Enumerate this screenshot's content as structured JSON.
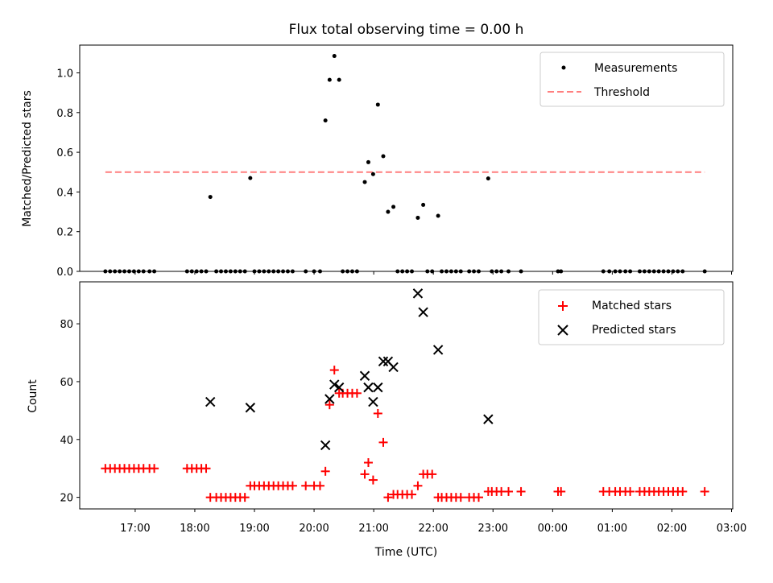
{
  "chart_data": [
    {
      "type": "scatter",
      "title": "Flux total observing time = 0.00 h",
      "xlabel": "",
      "ylabel": "Matched/Predicted stars",
      "xlim": [
        16.07,
        27.02
      ],
      "ylim": [
        0,
        1.14
      ],
      "x_tick_labels": [
        "17:00",
        "18:00",
        "19:00",
        "20:00",
        "21:00",
        "22:00",
        "23:00",
        "00:00",
        "01:00",
        "02:00",
        "03:00"
      ],
      "y_ticks": [
        0.0,
        0.2,
        0.4,
        0.6,
        0.8,
        1.0
      ],
      "y_tick_labels": [
        "0.0",
        "0.2",
        "0.4",
        "0.6",
        "0.8",
        "1.0"
      ],
      "legend": {
        "position": "upper right",
        "entries": [
          "Measurements",
          "Threshold"
        ]
      },
      "colors": {
        "measurements": "#000000",
        "threshold": "#ff7f7f"
      },
      "series": [
        {
          "name": "Measurements",
          "marker": "dot",
          "points": [
            [
              16.5,
              0
            ],
            [
              16.58,
              0
            ],
            [
              16.66,
              0
            ],
            [
              16.74,
              0
            ],
            [
              16.82,
              0
            ],
            [
              16.9,
              0
            ],
            [
              16.98,
              0
            ],
            [
              17.06,
              0
            ],
            [
              17.14,
              0
            ],
            [
              17.24,
              0
            ],
            [
              17.32,
              0
            ],
            [
              17.87,
              0
            ],
            [
              17.95,
              0
            ],
            [
              18.03,
              0
            ],
            [
              18.11,
              0
            ],
            [
              18.19,
              0
            ],
            [
              18.26,
              0.375
            ],
            [
              18.36,
              0
            ],
            [
              18.44,
              0
            ],
            [
              18.52,
              0
            ],
            [
              18.6,
              0
            ],
            [
              18.68,
              0
            ],
            [
              18.76,
              0
            ],
            [
              18.84,
              0
            ],
            [
              18.93,
              0.47
            ],
            [
              19.0,
              0
            ],
            [
              19.08,
              0
            ],
            [
              19.16,
              0
            ],
            [
              19.24,
              0
            ],
            [
              19.32,
              0
            ],
            [
              19.4,
              0
            ],
            [
              19.48,
              0
            ],
            [
              19.56,
              0
            ],
            [
              19.64,
              0
            ],
            [
              19.86,
              0
            ],
            [
              20.0,
              0
            ],
            [
              20.1,
              0
            ],
            [
              20.19,
              0.76
            ],
            [
              20.26,
              0.965
            ],
            [
              20.34,
              1.085
            ],
            [
              20.42,
              0.965
            ],
            [
              20.48,
              0
            ],
            [
              20.56,
              0
            ],
            [
              20.64,
              0
            ],
            [
              20.72,
              0
            ],
            [
              20.85,
              0.45
            ],
            [
              20.91,
              0.55
            ],
            [
              20.99,
              0.49
            ],
            [
              21.07,
              0.84
            ],
            [
              21.16,
              0.58
            ],
            [
              21.24,
              0.3
            ],
            [
              21.33,
              0.325
            ],
            [
              21.4,
              0
            ],
            [
              21.48,
              0
            ],
            [
              21.56,
              0
            ],
            [
              21.64,
              0
            ],
            [
              21.74,
              0.27
            ],
            [
              21.83,
              0.335
            ],
            [
              21.9,
              0
            ],
            [
              21.98,
              0
            ],
            [
              22.08,
              0.28
            ],
            [
              22.14,
              0
            ],
            [
              22.22,
              0
            ],
            [
              22.3,
              0
            ],
            [
              22.38,
              0
            ],
            [
              22.46,
              0
            ],
            [
              22.6,
              0
            ],
            [
              22.68,
              0
            ],
            [
              22.76,
              0
            ],
            [
              22.92,
              0.468
            ],
            [
              22.98,
              0
            ],
            [
              23.06,
              0
            ],
            [
              23.14,
              0
            ],
            [
              23.26,
              0
            ],
            [
              23.47,
              0
            ],
            [
              24.09,
              0
            ],
            [
              24.14,
              0
            ],
            [
              24.85,
              0
            ],
            [
              24.95,
              0
            ],
            [
              25.05,
              0
            ],
            [
              25.13,
              0
            ],
            [
              25.22,
              0
            ],
            [
              25.3,
              0
            ],
            [
              25.46,
              0
            ],
            [
              25.54,
              0
            ],
            [
              25.62,
              0
            ],
            [
              25.7,
              0
            ],
            [
              25.78,
              0
            ],
            [
              25.86,
              0
            ],
            [
              25.94,
              0
            ],
            [
              26.02,
              0
            ],
            [
              26.1,
              0
            ],
            [
              26.18,
              0
            ],
            [
              26.55,
              0
            ]
          ]
        },
        {
          "name": "Threshold",
          "style": "dashed",
          "points": [
            [
              16.5,
              0.5
            ],
            [
              26.55,
              0.5
            ]
          ]
        }
      ]
    },
    {
      "type": "scatter",
      "title": "",
      "xlabel": "Time (UTC)",
      "ylabel": "Count",
      "xlim": [
        16.07,
        27.02
      ],
      "ylim": [
        16,
        94.5
      ],
      "x_ticks": [
        17,
        18,
        19,
        20,
        21,
        22,
        23,
        24,
        25,
        26,
        27
      ],
      "x_tick_labels": [
        "17:00",
        "18:00",
        "19:00",
        "20:00",
        "21:00",
        "22:00",
        "23:00",
        "00:00",
        "01:00",
        "02:00",
        "03:00"
      ],
      "y_ticks": [
        20,
        40,
        60,
        80
      ],
      "y_tick_labels": [
        "20",
        "40",
        "60",
        "80"
      ],
      "legend": {
        "position": "upper right",
        "entries": [
          "Matched stars",
          "Predicted stars"
        ]
      },
      "colors": {
        "matched": "#ff0000",
        "predicted": "#000000"
      },
      "series": [
        {
          "name": "Matched stars",
          "marker": "plus",
          "points": [
            [
              16.5,
              30
            ],
            [
              16.58,
              30
            ],
            [
              16.66,
              30
            ],
            [
              16.74,
              30
            ],
            [
              16.82,
              30
            ],
            [
              16.9,
              30
            ],
            [
              16.98,
              30
            ],
            [
              17.06,
              30
            ],
            [
              17.14,
              30
            ],
            [
              17.24,
              30
            ],
            [
              17.32,
              30
            ],
            [
              17.87,
              30
            ],
            [
              17.95,
              30
            ],
            [
              18.03,
              30
            ],
            [
              18.11,
              30
            ],
            [
              18.19,
              30
            ],
            [
              18.26,
              20
            ],
            [
              18.36,
              20
            ],
            [
              18.44,
              20
            ],
            [
              18.52,
              20
            ],
            [
              18.6,
              20
            ],
            [
              18.68,
              20
            ],
            [
              18.76,
              20
            ],
            [
              18.84,
              20
            ],
            [
              18.93,
              24
            ],
            [
              19.0,
              24
            ],
            [
              19.08,
              24
            ],
            [
              19.16,
              24
            ],
            [
              19.24,
              24
            ],
            [
              19.32,
              24
            ],
            [
              19.4,
              24
            ],
            [
              19.48,
              24
            ],
            [
              19.56,
              24
            ],
            [
              19.64,
              24
            ],
            [
              19.86,
              24
            ],
            [
              20.0,
              24
            ],
            [
              20.1,
              24
            ],
            [
              20.19,
              29
            ],
            [
              20.26,
              52
            ],
            [
              20.34,
              64
            ],
            [
              20.42,
              56
            ],
            [
              20.48,
              56
            ],
            [
              20.56,
              56
            ],
            [
              20.64,
              56
            ],
            [
              20.72,
              56
            ],
            [
              20.85,
              28
            ],
            [
              20.91,
              32
            ],
            [
              20.99,
              26
            ],
            [
              21.07,
              49
            ],
            [
              21.16,
              39
            ],
            [
              21.24,
              20
            ],
            [
              21.33,
              21
            ],
            [
              21.4,
              21
            ],
            [
              21.48,
              21
            ],
            [
              21.56,
              21
            ],
            [
              21.64,
              21
            ],
            [
              21.74,
              24
            ],
            [
              21.83,
              28
            ],
            [
              21.9,
              28
            ],
            [
              21.98,
              28
            ],
            [
              22.08,
              20
            ],
            [
              22.14,
              20
            ],
            [
              22.22,
              20
            ],
            [
              22.3,
              20
            ],
            [
              22.38,
              20
            ],
            [
              22.46,
              20
            ],
            [
              22.6,
              20
            ],
            [
              22.68,
              20
            ],
            [
              22.76,
              20
            ],
            [
              22.92,
              22
            ],
            [
              22.98,
              22
            ],
            [
              23.06,
              22
            ],
            [
              23.14,
              22
            ],
            [
              23.26,
              22
            ],
            [
              23.47,
              22
            ],
            [
              24.09,
              22
            ],
            [
              24.14,
              22
            ],
            [
              24.85,
              22
            ],
            [
              24.95,
              22
            ],
            [
              25.05,
              22
            ],
            [
              25.13,
              22
            ],
            [
              25.22,
              22
            ],
            [
              25.3,
              22
            ],
            [
              25.46,
              22
            ],
            [
              25.54,
              22
            ],
            [
              25.62,
              22
            ],
            [
              25.7,
              22
            ],
            [
              25.78,
              22
            ],
            [
              25.86,
              22
            ],
            [
              25.94,
              22
            ],
            [
              26.02,
              22
            ],
            [
              26.1,
              22
            ],
            [
              26.18,
              22
            ],
            [
              26.55,
              22
            ]
          ]
        },
        {
          "name": "Predicted stars",
          "marker": "x",
          "points": [
            [
              18.26,
              53
            ],
            [
              18.93,
              51
            ],
            [
              20.19,
              38
            ],
            [
              20.26,
              54
            ],
            [
              20.34,
              59
            ],
            [
              20.42,
              58
            ],
            [
              20.85,
              62
            ],
            [
              20.91,
              58
            ],
            [
              20.99,
              53
            ],
            [
              21.07,
              58
            ],
            [
              21.16,
              67
            ],
            [
              21.24,
              67
            ],
            [
              21.33,
              65
            ],
            [
              21.74,
              90.5
            ],
            [
              21.83,
              84
            ],
            [
              22.08,
              71
            ],
            [
              22.92,
              47
            ]
          ]
        }
      ]
    }
  ]
}
